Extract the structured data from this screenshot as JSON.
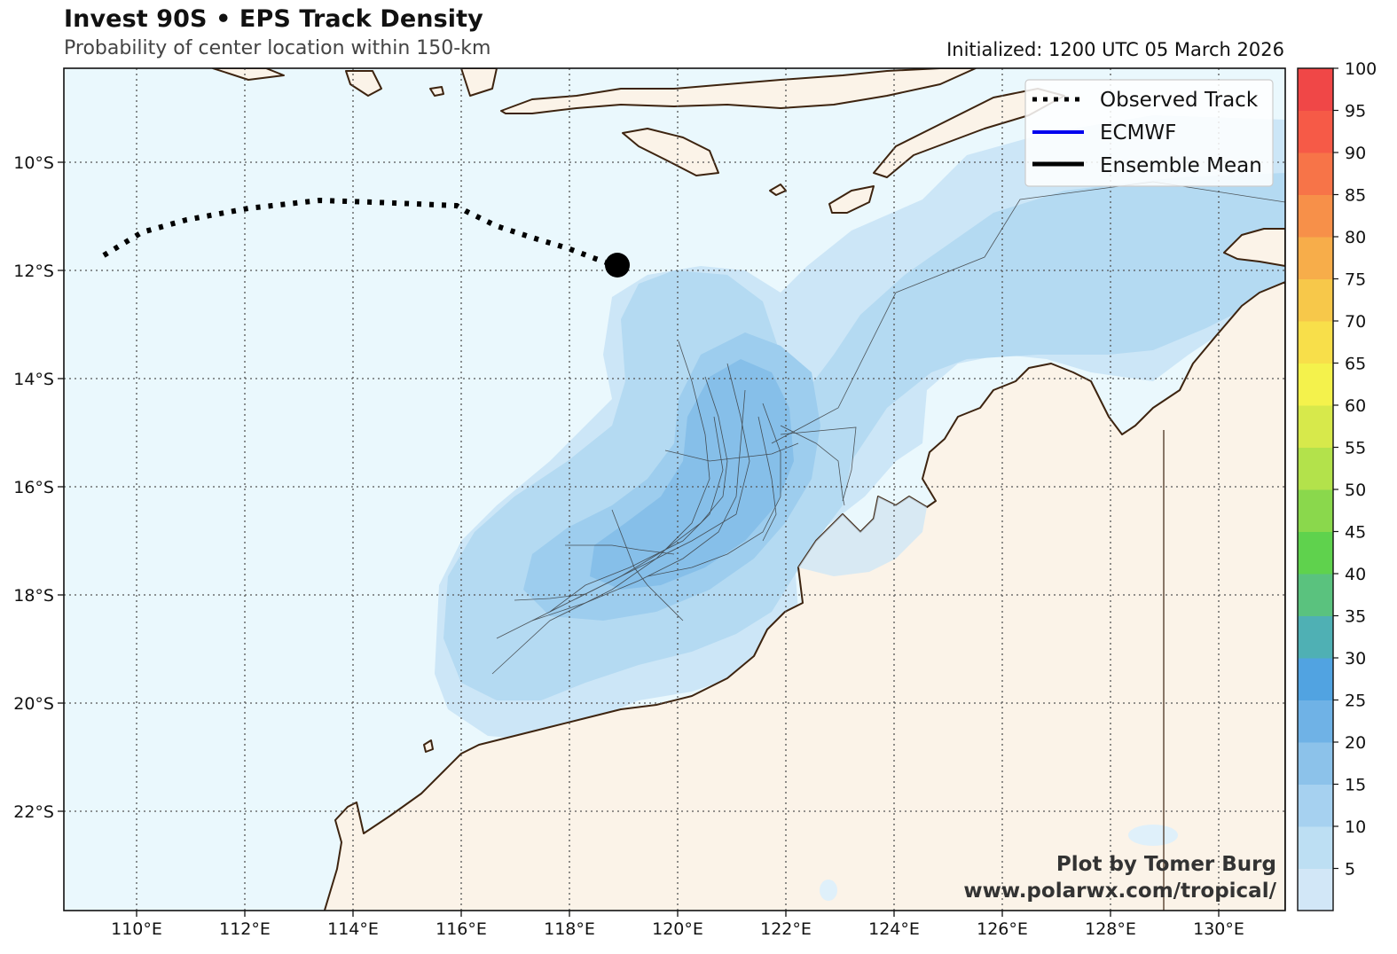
{
  "header": {
    "title": "Invest 90S • EPS Track Density",
    "subtitle": "Probability of center location within 150-km",
    "initialized": "Initialized: 1200 UTC 05 March 2026"
  },
  "map": {
    "lon_ticks": [
      "110°E",
      "112°E",
      "114°E",
      "116°E",
      "118°E",
      "120°E",
      "122°E",
      "124°E",
      "126°E",
      "128°E",
      "130°E"
    ],
    "lat_ticks": [
      "10°S",
      "12°S",
      "14°S",
      "16°S",
      "18°S",
      "20°S",
      "22°S"
    ],
    "colors": {
      "ocean": "#eaf8fd",
      "land": "#fbf3e8",
      "coast": "#3d2410",
      "grid": "#555555"
    }
  },
  "legend": {
    "items": [
      {
        "label": "Observed Track",
        "style": "dotted",
        "color": "#000000"
      },
      {
        "label": "ECMWF",
        "style": "solid",
        "color": "#0000ee"
      },
      {
        "label": "Ensemble Mean",
        "style": "solid",
        "color": "#000000"
      }
    ]
  },
  "colorbar": {
    "labels": [
      "5",
      "10",
      "15",
      "20",
      "25",
      "30",
      "35",
      "40",
      "45",
      "50",
      "55",
      "60",
      "65",
      "70",
      "75",
      "80",
      "85",
      "90",
      "95",
      "100"
    ],
    "colors": [
      "#d2e7f7",
      "#bddff3",
      "#a6d1f0",
      "#8cc2ea",
      "#6fb2e6",
      "#51a3e1",
      "#4fb0b4",
      "#5ac27e",
      "#5fd24d",
      "#8ad84c",
      "#b3e24b",
      "#d7e94b",
      "#f4f24c",
      "#f8df4a",
      "#f7c84a",
      "#f7ad4a",
      "#f79049",
      "#f77448",
      "#f65a47",
      "#f04747"
    ]
  },
  "track": {
    "observed_label": "Observed Track",
    "current_position": {
      "lon": 118.9,
      "lat": -11.9
    }
  },
  "credit": {
    "line1": "Plot by Tomer Burg",
    "line2": "www.polarwx.com/tropical/"
  }
}
